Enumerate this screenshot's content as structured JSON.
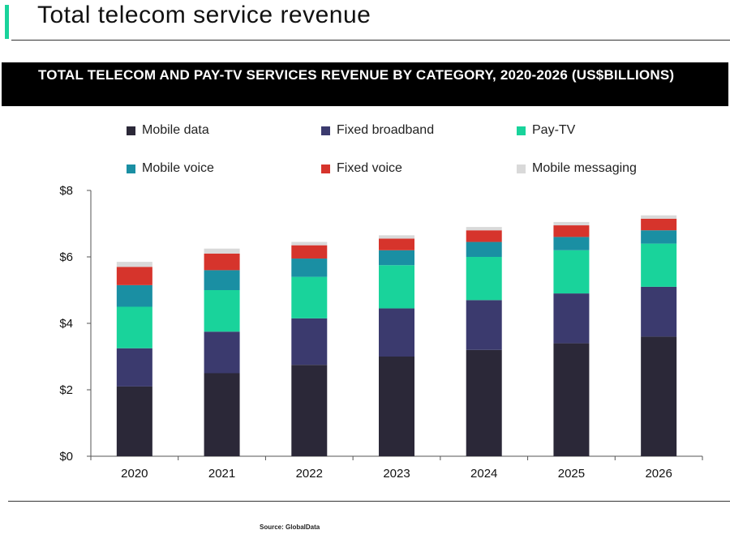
{
  "slide": {
    "title": "Total telecom service revenue",
    "source": "Source: GlobalData"
  },
  "colors": {
    "accent": "#19d39b",
    "banner_bg": "#000000"
  },
  "chart_data": {
    "type": "bar",
    "stacked": true,
    "title": "TOTAL TELECOM AND PAY-TV SERVICES REVENUE BY CATEGORY, 2020-2026 (US$BILLIONS)",
    "xlabel": "",
    "ylabel": "",
    "ylim": [
      0,
      8
    ],
    "yticks": [
      "$0",
      "$2",
      "$4",
      "$6",
      "$8"
    ],
    "legend_position": "top",
    "grid": false,
    "categories": [
      "2020",
      "2021",
      "2022",
      "2023",
      "2024",
      "2025",
      "2026"
    ],
    "series": [
      {
        "name": "Mobile data",
        "color": "#2b2838",
        "values": [
          2.1,
          2.5,
          2.75,
          3.0,
          3.2,
          3.4,
          3.6
        ]
      },
      {
        "name": "Fixed broadband",
        "color": "#3b3a6e",
        "values": [
          1.15,
          1.25,
          1.4,
          1.45,
          1.5,
          1.5,
          1.5
        ]
      },
      {
        "name": "Pay-TV",
        "color": "#19d39b",
        "values": [
          1.25,
          1.25,
          1.25,
          1.3,
          1.3,
          1.3,
          1.3
        ]
      },
      {
        "name": "Mobile voice",
        "color": "#1a8fa3",
        "values": [
          0.65,
          0.6,
          0.55,
          0.45,
          0.45,
          0.4,
          0.4
        ]
      },
      {
        "name": "Fixed voice",
        "color": "#d6342c",
        "values": [
          0.55,
          0.5,
          0.4,
          0.35,
          0.35,
          0.35,
          0.35
        ]
      },
      {
        "name": "Mobile messaging",
        "color": "#d9d9d9",
        "values": [
          0.15,
          0.15,
          0.1,
          0.1,
          0.1,
          0.1,
          0.1
        ]
      }
    ]
  }
}
